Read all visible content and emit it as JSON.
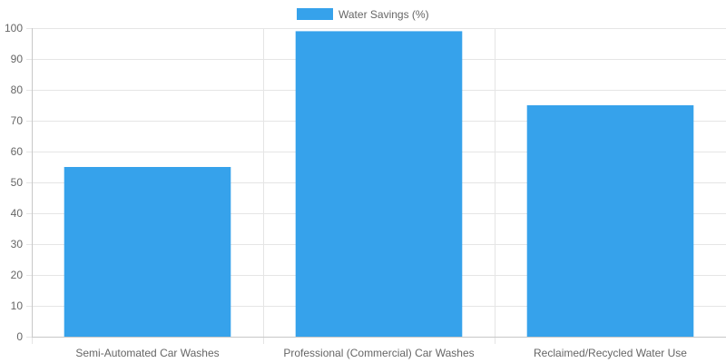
{
  "chart_data": {
    "type": "bar",
    "categories": [
      "Semi-Automated Car Washes",
      "Professional (Commercial) Car Washes",
      "Reclaimed/Recycled Water Use"
    ],
    "series": [
      {
        "name": "Water Savings (%)",
        "values": [
          55,
          99,
          75
        ],
        "color": "#36a2eb"
      }
    ],
    "ylim": [
      0,
      100
    ],
    "yticks": [
      0,
      10,
      20,
      30,
      40,
      50,
      60,
      70,
      80,
      90,
      100
    ],
    "grid": true,
    "legend_position": "top-center",
    "colors": {
      "bar": "#36a2eb",
      "grid": "#e5e5e5",
      "text": "#666666"
    }
  }
}
